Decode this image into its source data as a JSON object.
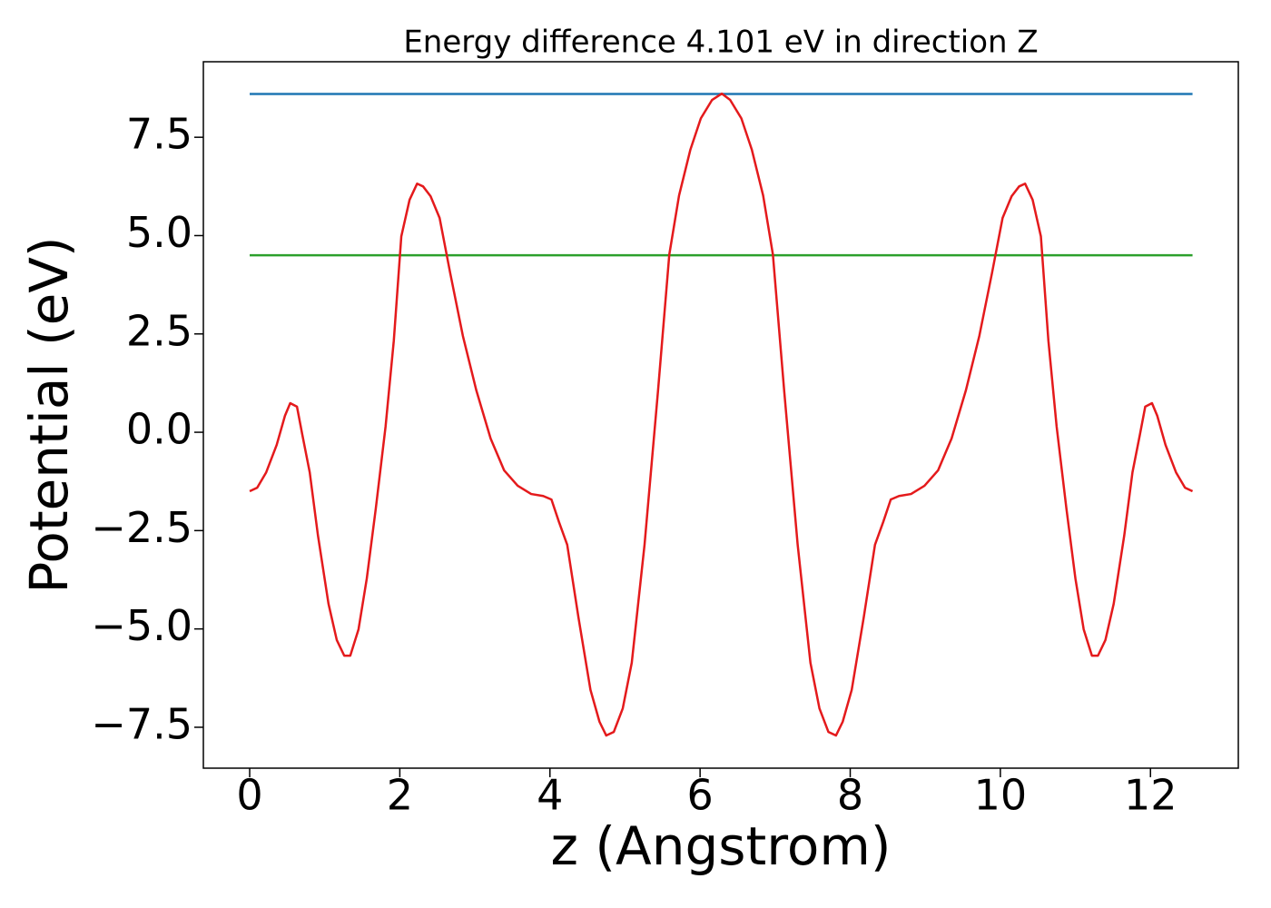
{
  "chart_data": {
    "type": "line",
    "title": "Energy difference 4.101 eV in direction Z",
    "xlabel": "z (Angstrom)",
    "ylabel": "Potential (eV)",
    "xlim": [
      -0.617,
      13.17
    ],
    "ylim": [
      -8.54,
      9.42
    ],
    "xticks": [
      0,
      2,
      4,
      6,
      8,
      10,
      12
    ],
    "yticks": [
      {
        "value": -7.5,
        "label": "−7.5"
      },
      {
        "value": -5.0,
        "label": "−5.0"
      },
      {
        "value": -2.5,
        "label": "−2.5"
      },
      {
        "value": 0.0,
        "label": "0.0"
      },
      {
        "value": 2.5,
        "label": "2.5"
      },
      {
        "value": 5.0,
        "label": "5.0"
      },
      {
        "value": 7.5,
        "label": "7.5"
      }
    ],
    "grid": false,
    "series": [
      {
        "color": "#1f77b4",
        "x": [
          0,
          12.56
        ],
        "values": [
          8.601,
          8.601
        ]
      },
      {
        "color": "#2ca02c",
        "x": [
          0,
          12.56
        ],
        "values": [
          4.5,
          4.5
        ]
      },
      {
        "color": "#e41a1c",
        "x": [
          0,
          0.1,
          0.22,
          0.36,
          0.47,
          0.54,
          0.63,
          0.7,
          0.8,
          0.91,
          1.05,
          1.16,
          1.26,
          1.34,
          1.45,
          1.56,
          1.68,
          1.81,
          1.92,
          2.02,
          2.13,
          2.23,
          2.31,
          2.41,
          2.53,
          2.67,
          2.84,
          3.02,
          3.21,
          3.39,
          3.57,
          3.75,
          3.91,
          4.02,
          4.12,
          4.23,
          4.38,
          4.54,
          4.66,
          4.75,
          4.85,
          4.97,
          5.09,
          5.26,
          5.44,
          5.59,
          5.72,
          5.87,
          6.01,
          6.16,
          6.29,
          6.4,
          6.55,
          6.69,
          6.84,
          6.97,
          7.12,
          7.3,
          7.47,
          7.59,
          7.71,
          7.81,
          7.9,
          8.02,
          8.18,
          8.33,
          8.44,
          8.54,
          8.65,
          8.81,
          8.99,
          9.17,
          9.35,
          9.54,
          9.72,
          9.89,
          10.03,
          10.15,
          10.25,
          10.33,
          10.43,
          10.54,
          10.64,
          10.75,
          10.88,
          11.0,
          11.11,
          11.22,
          11.3,
          11.4,
          11.51,
          11.65,
          11.76,
          11.86,
          11.93,
          12.02,
          12.09,
          12.2,
          12.34,
          12.46,
          12.56
        ],
        "values": [
          -1.5,
          -1.41,
          -1.02,
          -0.32,
          0.42,
          0.74,
          0.65,
          -0.05,
          -1.02,
          -2.63,
          -4.36,
          -5.28,
          -5.68,
          -5.68,
          -5.01,
          -3.72,
          -1.94,
          0.14,
          2.33,
          4.98,
          5.91,
          6.32,
          6.25,
          6.0,
          5.45,
          4.06,
          2.45,
          1.06,
          -0.16,
          -0.97,
          -1.36,
          -1.57,
          -1.62,
          -1.71,
          -2.28,
          -2.86,
          -4.71,
          -6.55,
          -7.36,
          -7.71,
          -7.62,
          -7.02,
          -5.86,
          -2.86,
          1.06,
          4.52,
          6.02,
          7.18,
          7.98,
          8.45,
          8.61,
          8.45,
          7.98,
          7.18,
          6.02,
          4.52,
          1.06,
          -2.86,
          -5.86,
          -7.02,
          -7.62,
          -7.71,
          -7.36,
          -6.55,
          -4.71,
          -2.86,
          -2.28,
          -1.71,
          -1.62,
          -1.57,
          -1.36,
          -0.97,
          -0.16,
          1.06,
          2.45,
          4.06,
          5.45,
          6.0,
          6.25,
          6.32,
          5.91,
          4.98,
          2.33,
          0.14,
          -1.94,
          -3.72,
          -5.01,
          -5.68,
          -5.68,
          -5.28,
          -4.36,
          -2.63,
          -1.02,
          -0.05,
          0.65,
          0.74,
          0.42,
          -0.32,
          -1.02,
          -1.41,
          -1.5
        ]
      }
    ]
  }
}
